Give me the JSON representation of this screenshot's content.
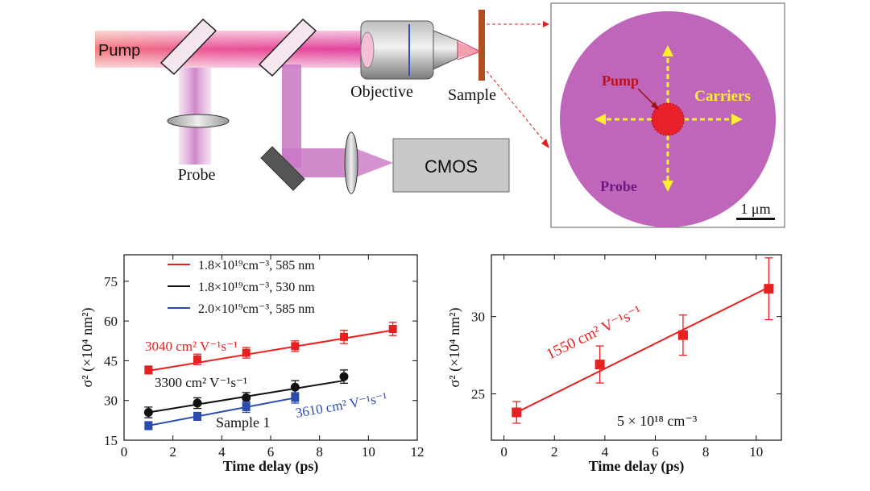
{
  "setup": {
    "pump_label": "Pump",
    "probe_label": "Probe",
    "objective_label": "Objective",
    "sample_label": "Sample",
    "cmos_label": "CMOS"
  },
  "inset": {
    "pump_label": "Pump",
    "carriers_label": "Carriers",
    "probe_label": "Probe",
    "scale_label": "1 μm"
  },
  "colors": {
    "pump": "#e8202a",
    "probe": "#c05cb8",
    "carriers": "#ffee33",
    "series_red": "#e82020",
    "series_black": "#111111",
    "series_blue": "#2b4bb0"
  },
  "chart_data": [
    {
      "type": "scatter",
      "title": "",
      "xlabel": "Time delay (ps)",
      "ylabel": "σ² (×10⁴ nm²)",
      "xlim": [
        0,
        12
      ],
      "ylim": [
        15,
        85
      ],
      "xticks": [
        0,
        2,
        4,
        6,
        8,
        10,
        12
      ],
      "yticks": [
        15,
        30,
        45,
        60,
        75
      ],
      "legend": [
        {
          "label": "1.8×10¹⁹cm⁻³, 585 nm",
          "color": "#e82020"
        },
        {
          "label": "1.8×10¹⁹cm⁻³, 530 nm",
          "color": "#111111"
        },
        {
          "label": "2.0×10¹⁹cm⁻³, 585 nm",
          "color": "#2b4bb0"
        }
      ],
      "series": [
        {
          "name": "1.8×10¹⁹cm⁻³, 585 nm",
          "color": "#e82020",
          "marker": "square",
          "x": [
            1,
            3,
            5,
            7,
            9,
            11
          ],
          "y": [
            41.5,
            45.5,
            48,
            50.5,
            54,
            57
          ],
          "err": [
            1.5,
            2,
            2,
            2,
            2.5,
            2.5
          ],
          "fit": [
            [
              1,
              41.2
            ],
            [
              11,
              56.5
            ]
          ],
          "annotation": "3040 cm² V⁻¹s⁻¹"
        },
        {
          "name": "1.8×10¹⁹cm⁻³, 530 nm",
          "color": "#111111",
          "marker": "circle",
          "x": [
            1,
            3,
            5,
            7,
            9
          ],
          "y": [
            25.5,
            29,
            31,
            35,
            39
          ],
          "err": [
            2,
            2,
            2,
            2.5,
            2.5
          ],
          "fit": [
            [
              1,
              25.5
            ],
            [
              9,
              37.5
            ]
          ],
          "annotation": "3300 cm² V⁻¹s⁻¹"
        },
        {
          "name": "2.0×10¹⁹cm⁻³, 585 nm",
          "color": "#2b4bb0",
          "marker": "square",
          "x": [
            1,
            3,
            5,
            7
          ],
          "y": [
            20.5,
            24,
            27.5,
            31
          ],
          "err": [
            1.5,
            1.5,
            2,
            2
          ],
          "fit": [
            [
              1,
              20.5
            ],
            [
              7,
              31
            ]
          ],
          "annotation": "3610 cm² V⁻¹s⁻¹"
        }
      ],
      "note": "Sample 1"
    },
    {
      "type": "scatter",
      "title": "",
      "xlabel": "Time delay (ps)",
      "ylabel": "σ² (×10⁴ nm²)",
      "xlim": [
        -0.5,
        11
      ],
      "ylim": [
        22,
        34
      ],
      "xticks": [
        0,
        2,
        4,
        6,
        8,
        10
      ],
      "yticks": [
        25,
        30
      ],
      "series": [
        {
          "name": "5 × 10¹⁸ cm⁻³",
          "color": "#e82020",
          "marker": "square",
          "x": [
            0.5,
            3.8,
            7.1,
            10.5
          ],
          "y": [
            23.8,
            26.9,
            28.8,
            31.8
          ],
          "err": [
            0.7,
            1.2,
            1.3,
            2.0
          ],
          "fit": [
            [
              0.5,
              23.8
            ],
            [
              10.5,
              31.9
            ]
          ],
          "annotation": "1550 cm² V⁻¹s⁻¹"
        }
      ],
      "note": "5 × 10¹⁸ cm⁻³"
    }
  ]
}
